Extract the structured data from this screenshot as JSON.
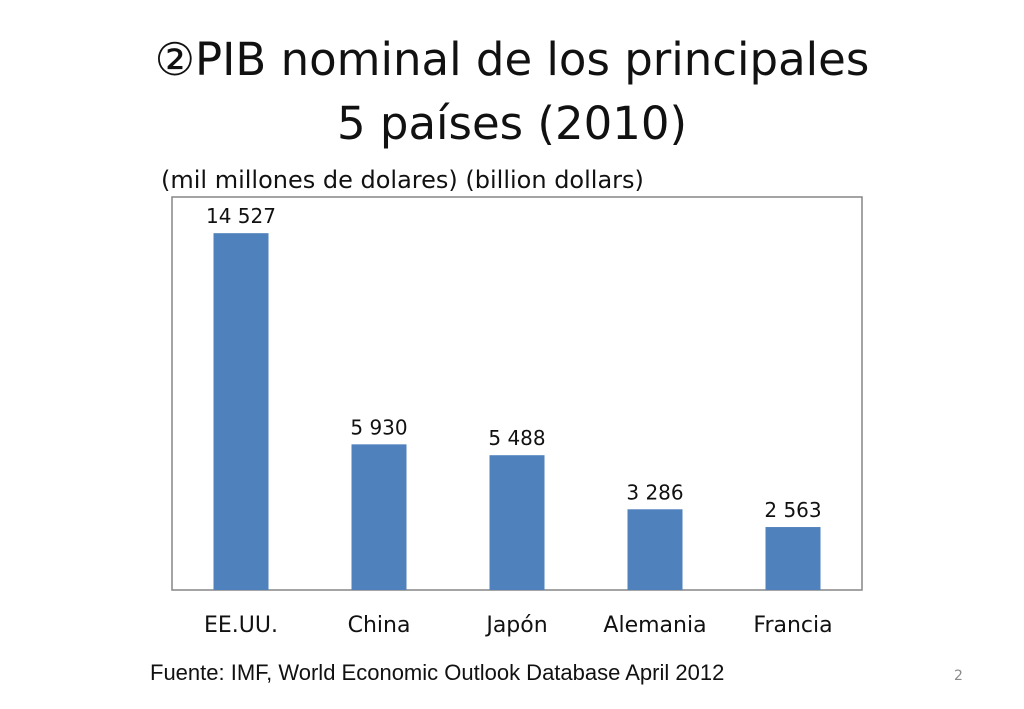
{
  "slide": {
    "title_line1": "②PIB nominal de los principales",
    "title_line2": "5 países (2010)",
    "unit": "(mil millones de dolares) (billion dollars)",
    "source": "Fuente: IMF, World Economic Outlook Database April 2012",
    "page_number": "2"
  },
  "chart_data": {
    "type": "bar",
    "title": "",
    "xlabel": "",
    "ylabel": "",
    "categories": [
      "EE.UU.",
      "China",
      "Japón",
      "Alemania",
      "Francia"
    ],
    "values": [
      14527,
      5930,
      5488,
      3286,
      2563
    ],
    "data_labels": [
      "14 527",
      "5 930",
      "5 488",
      "3 286",
      "2 563"
    ],
    "ylim": [
      0,
      16000
    ],
    "grid": false,
    "legend": "none",
    "bar_color": "#4f81bd"
  }
}
